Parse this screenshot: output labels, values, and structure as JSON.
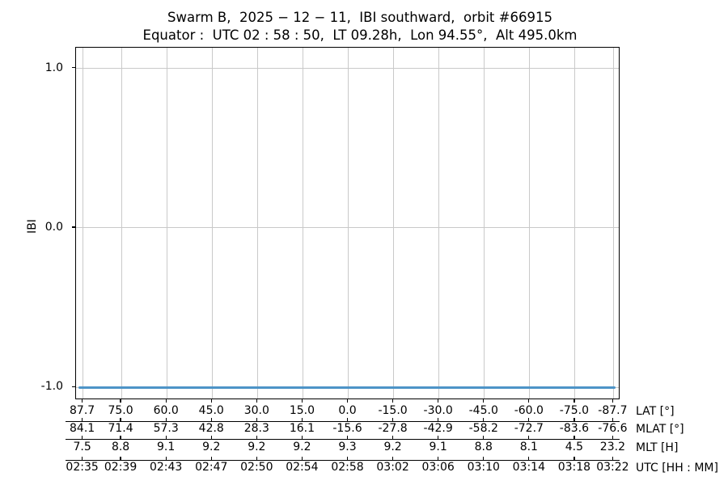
{
  "chart_data": {
    "type": "line",
    "title": "Swarm B,  2025 − 12 − 11,  IBI southward,  orbit #66915",
    "subtitle": "Equator :  UTC 02 : 58 : 50,  LT 09.28h,  Lon 94.55°,  Alt 495.0km",
    "ylabel": "IBI",
    "ylim": [
      -1.08,
      1.13
    ],
    "yticks": [
      1.0,
      0.0,
      -1.0
    ],
    "ytick_labels": [
      "1.0",
      "0.0",
      "-1.0"
    ],
    "grid": true,
    "legend": "none",
    "xlim_lat": [
      90,
      -90
    ],
    "tick_lats": [
      87.7,
      75,
      60,
      45,
      30,
      15,
      0,
      -15,
      -30,
      -45,
      -60,
      -75,
      -87.7
    ],
    "series": [
      {
        "name": "IBI",
        "y_value": -1.0,
        "x_start_lat": 89.3,
        "x_end_lat": -88.3,
        "color": "#4d94c7"
      }
    ],
    "x_axes": [
      {
        "label": "LAT [°]",
        "ticks": [
          "87.7",
          "75.0",
          "60.0",
          "45.0",
          "30.0",
          "15.0",
          "0.0",
          "-15.0",
          "-30.0",
          "-45.0",
          "-60.0",
          "-75.0",
          "-87.7"
        ]
      },
      {
        "label": "MLAT [°]",
        "ticks": [
          "84.1",
          "71.4",
          "57.3",
          "42.8",
          "28.3",
          "16.1",
          "-15.6",
          "-27.8",
          "-42.9",
          "-58.2",
          "-72.7",
          "-83.6",
          "-76.6"
        ]
      },
      {
        "label": "MLT [H]",
        "ticks": [
          "7.5",
          "8.8",
          "9.1",
          "9.2",
          "9.2",
          "9.2",
          "9.3",
          "9.2",
          "9.1",
          "8.8",
          "8.1",
          "4.5",
          "23.2"
        ]
      },
      {
        "label": "UTC [HH : MM]",
        "ticks": [
          "02:35",
          "02:39",
          "02:43",
          "02:47",
          "02:50",
          "02:54",
          "02:58",
          "03:02",
          "03:06",
          "03:10",
          "03:14",
          "03:18",
          "03:22"
        ]
      }
    ]
  },
  "colors": {
    "line": "#4d94c7",
    "grid": "#c9c9c9",
    "axis": "#000000",
    "background": "#ffffff"
  }
}
